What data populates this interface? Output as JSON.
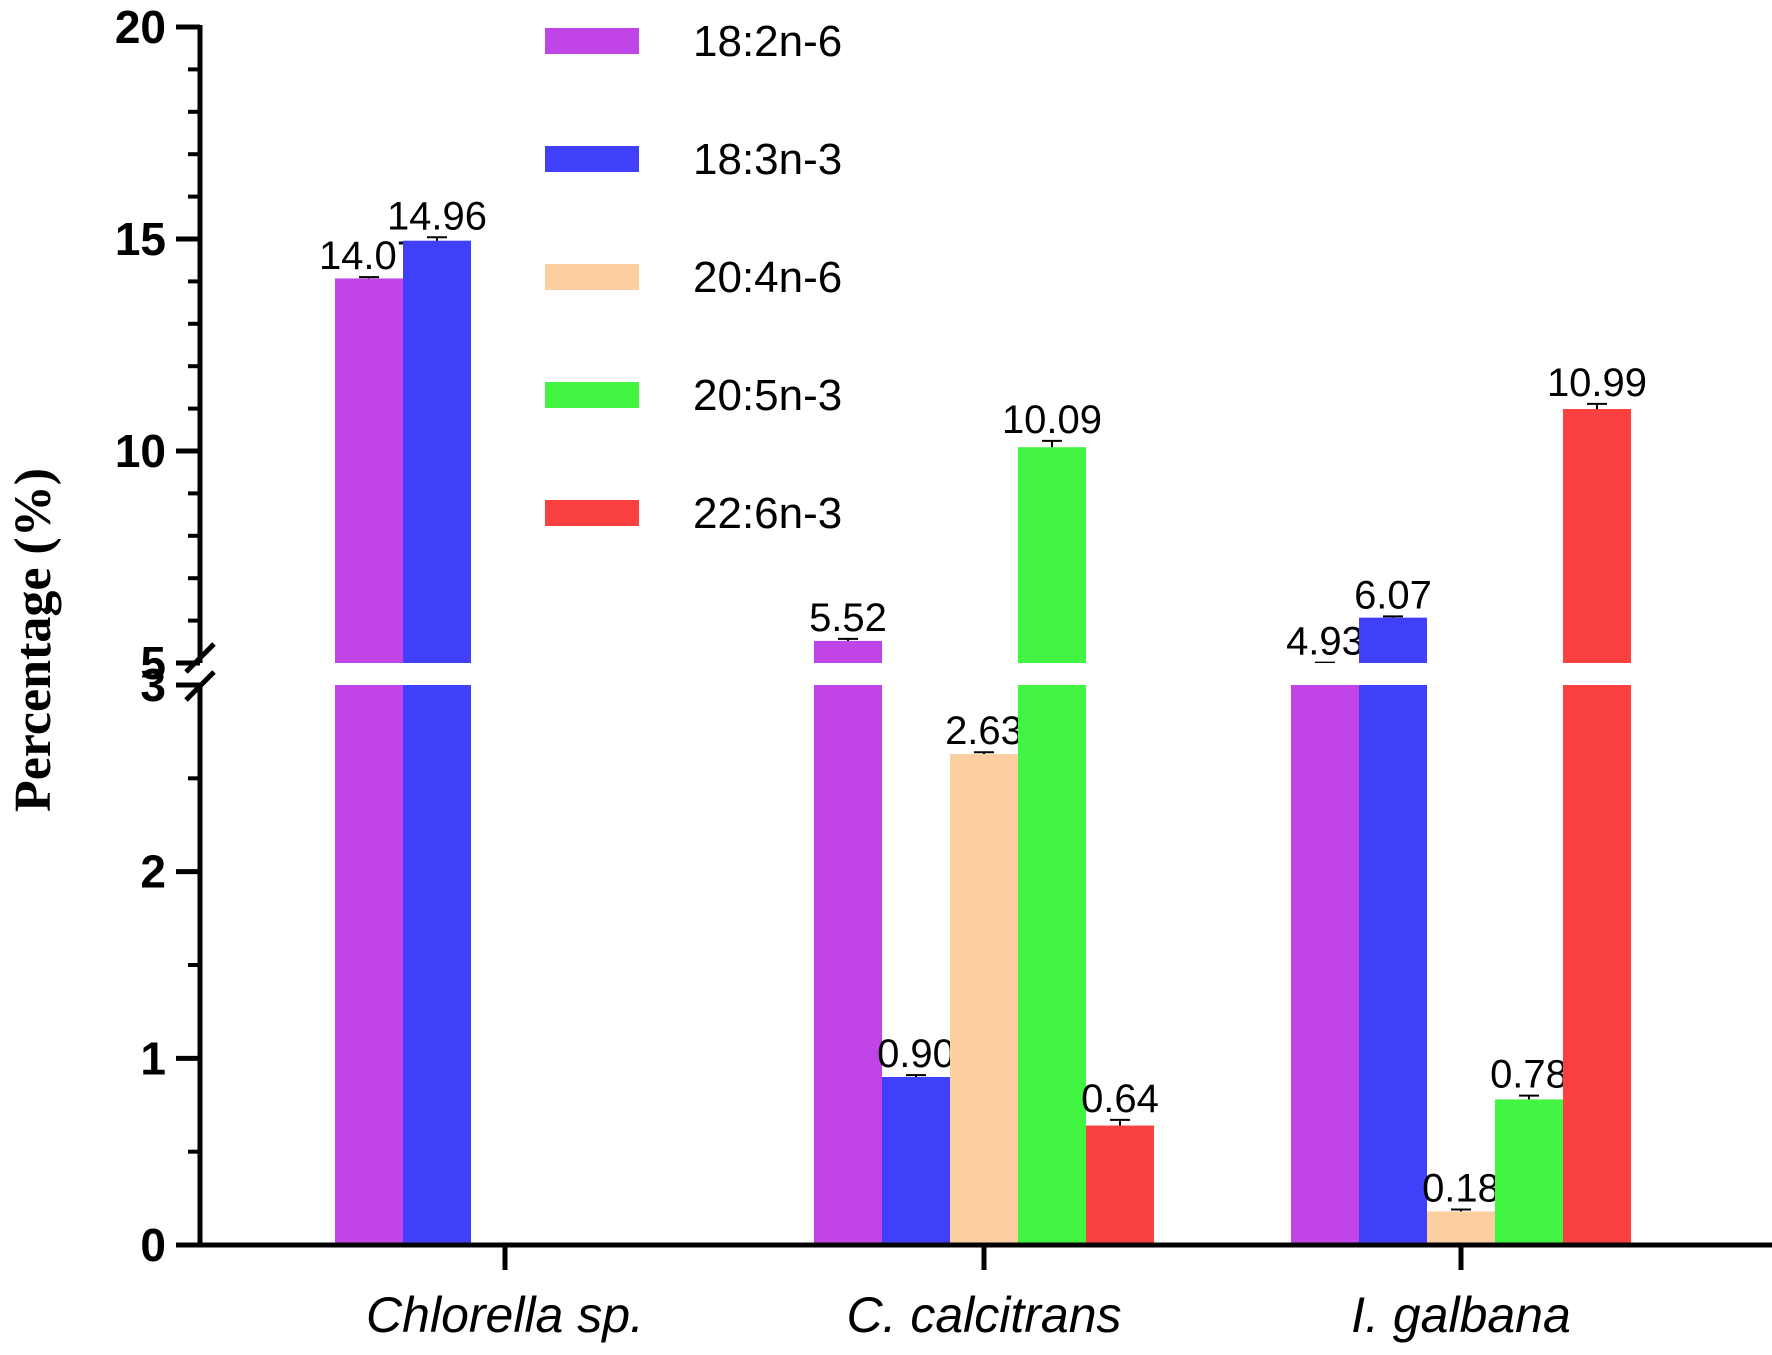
{
  "chart_data": {
    "type": "bar",
    "title": "",
    "xlabel": "",
    "ylabel": "Percentage (%)",
    "ylim": [
      0,
      20
    ],
    "axis_break": [
      3,
      5
    ],
    "lower_ticks": [
      0,
      1,
      2,
      3
    ],
    "upper_ticks": [
      5,
      10,
      15,
      20
    ],
    "categories": [
      "Chlorella sp.",
      "C. calcitrans",
      "I. galbana"
    ],
    "series": [
      {
        "name": "18:2n-6",
        "color": "#c144e6",
        "values": [
          14.07,
          5.52,
          4.93
        ],
        "errors": [
          0.03,
          0.05,
          0.08
        ],
        "labels": [
          "14.07",
          "5.52",
          "4.93"
        ]
      },
      {
        "name": "18:3n-3",
        "color": "#4040fb",
        "values": [
          14.96,
          0.9,
          6.07
        ],
        "errors": [
          0.08,
          0.01,
          0.03
        ],
        "labels": [
          "14.96",
          "0.90",
          "6.07"
        ]
      },
      {
        "name": "20:4n-6",
        "color": "#fccfa1",
        "values": [
          null,
          2.63,
          0.18
        ],
        "errors": [
          null,
          0.01,
          0.01
        ],
        "labels": [
          null,
          "2.63",
          "0.18"
        ]
      },
      {
        "name": "20:5n-3",
        "color": "#42f542",
        "values": [
          null,
          10.09,
          0.78
        ],
        "errors": [
          null,
          0.15,
          0.02
        ],
        "labels": [
          null,
          "10.09",
          "0.78"
        ]
      },
      {
        "name": "22:6n-3",
        "color": "#fb4040",
        "values": [
          null,
          0.64,
          10.99
        ],
        "errors": [
          null,
          0.03,
          0.12
        ],
        "labels": [
          null,
          "0.64",
          "10.99"
        ]
      }
    ],
    "legend": {
      "position": "top-center"
    }
  }
}
